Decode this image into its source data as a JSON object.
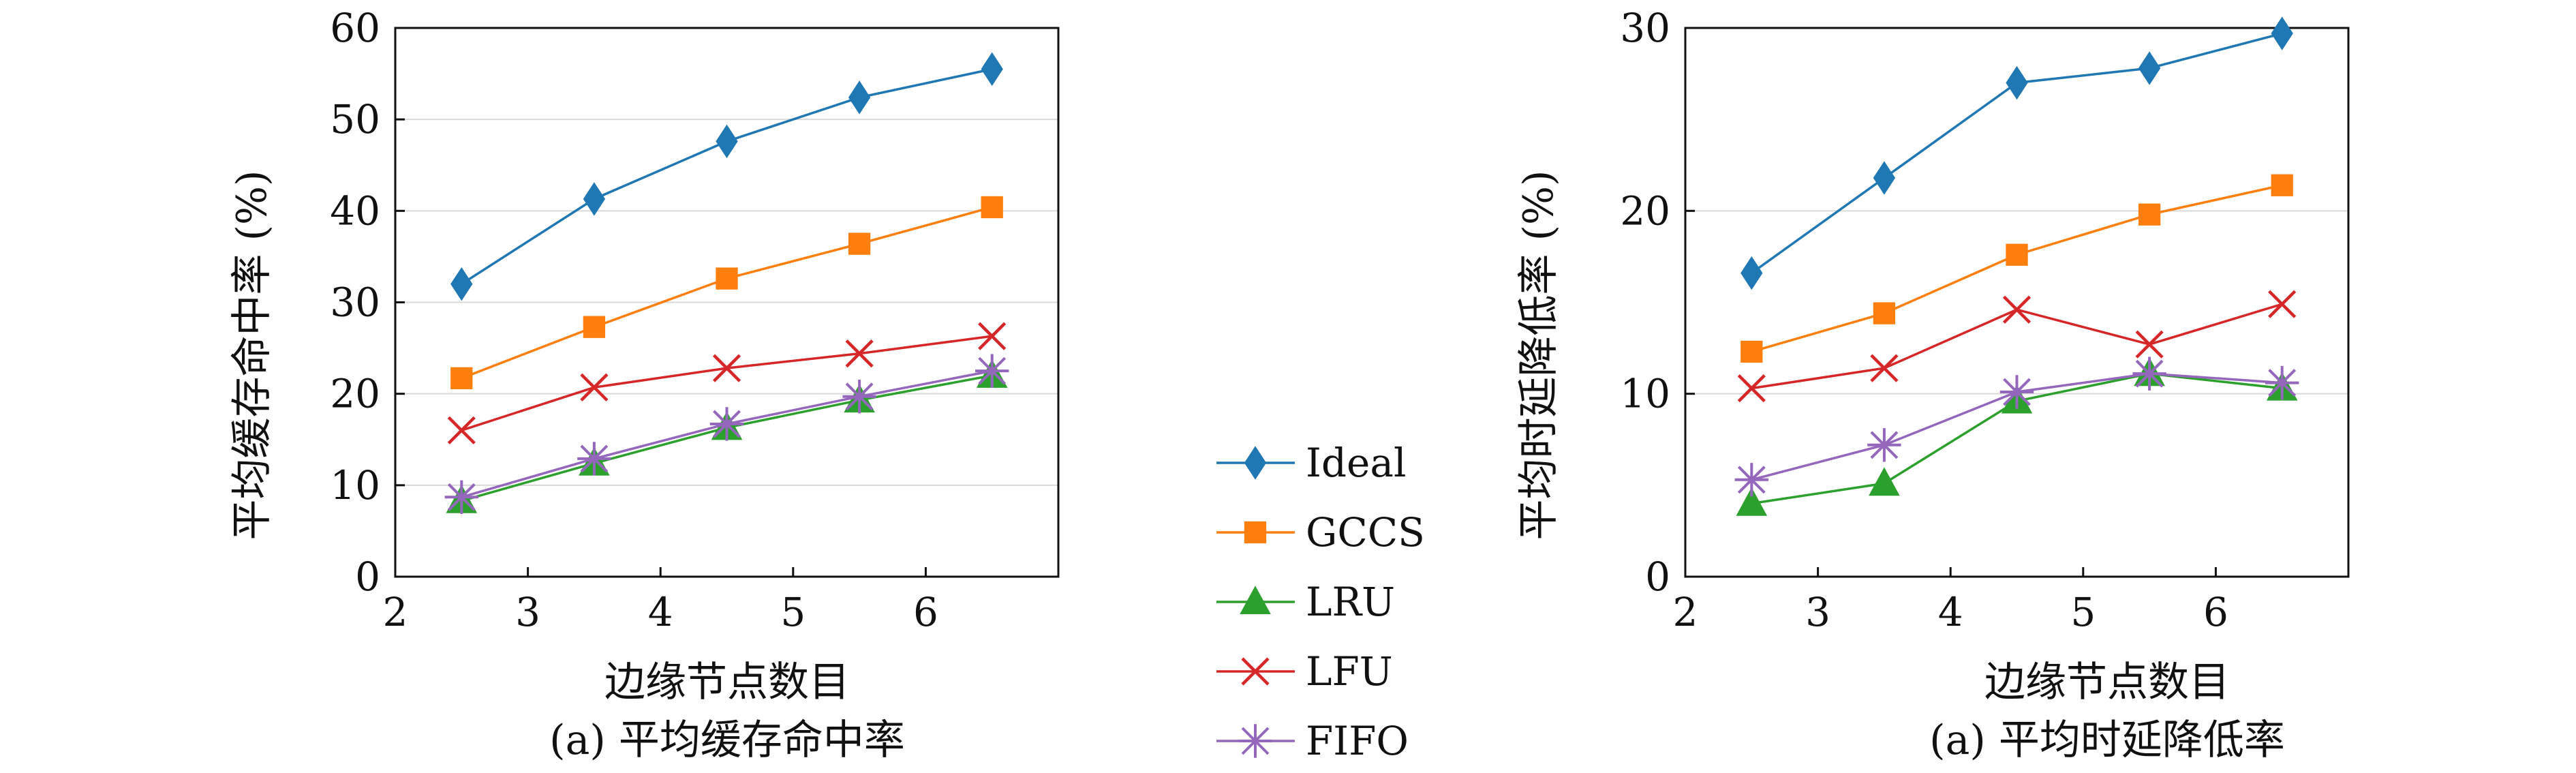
{
  "chart_data": [
    {
      "type": "line",
      "title": "",
      "caption": "(a) 平均缓存命中率",
      "xlabel": "边缘节点数目",
      "ylabel": "平均缓存命中率 (%)",
      "xlim": [
        2,
        7
      ],
      "ylim": [
        0,
        60
      ],
      "xticks": [
        2,
        3,
        4,
        5,
        6
      ],
      "yticks": [
        0,
        10,
        20,
        30,
        40,
        50,
        60
      ],
      "grid": "horizontal",
      "x": [
        2.5,
        3.5,
        4.5,
        5.5,
        6.5
      ],
      "series": [
        {
          "name": "Ideal",
          "values": [
            32.0,
            41.3,
            47.6,
            52.4,
            55.5
          ]
        },
        {
          "name": "GCCS",
          "values": [
            21.7,
            27.3,
            32.6,
            36.4,
            40.4
          ]
        },
        {
          "name": "LRU",
          "values": [
            8.3,
            12.4,
            16.3,
            19.3,
            22.0
          ]
        },
        {
          "name": "LFU",
          "values": [
            16.0,
            20.7,
            22.8,
            24.4,
            26.3
          ]
        },
        {
          "name": "FIFO",
          "values": [
            8.7,
            12.9,
            16.7,
            19.7,
            22.5
          ]
        }
      ]
    },
    {
      "type": "line",
      "title": "",
      "caption": "(a) 平均时延降低率",
      "xlabel": "边缘节点数目",
      "ylabel": "平均时延降低率 (%)",
      "xlim": [
        2,
        7
      ],
      "ylim": [
        0,
        30
      ],
      "xticks": [
        2,
        3,
        4,
        5,
        6
      ],
      "yticks": [
        0,
        10,
        20,
        30
      ],
      "grid": "horizontal",
      "x": [
        2.5,
        3.5,
        4.5,
        5.5,
        6.5
      ],
      "series": [
        {
          "name": "Ideal",
          "values": [
            16.6,
            21.8,
            27.0,
            27.8,
            29.7
          ]
        },
        {
          "name": "GCCS",
          "values": [
            12.3,
            14.4,
            17.6,
            19.8,
            21.4
          ]
        },
        {
          "name": "LRU",
          "values": [
            4.0,
            5.1,
            9.6,
            11.1,
            10.3
          ]
        },
        {
          "name": "LFU",
          "values": [
            10.3,
            11.4,
            14.6,
            12.7,
            14.9
          ]
        },
        {
          "name": "FIFO",
          "values": [
            5.3,
            7.2,
            10.1,
            11.1,
            10.6
          ]
        }
      ]
    }
  ],
  "legend": {
    "placement": "between-panels",
    "entries": [
      {
        "name": "Ideal",
        "color": "#1f77b4",
        "marker": "diamond-icon"
      },
      {
        "name": "GCCS",
        "color": "#ff7f0e",
        "marker": "square-icon"
      },
      {
        "name": "LRU",
        "color": "#2ca02c",
        "marker": "triangle-icon"
      },
      {
        "name": "LFU",
        "color": "#d62728",
        "marker": "x-icon"
      },
      {
        "name": "FIFO",
        "color": "#9467bd",
        "marker": "asterisk-icon"
      }
    ]
  }
}
